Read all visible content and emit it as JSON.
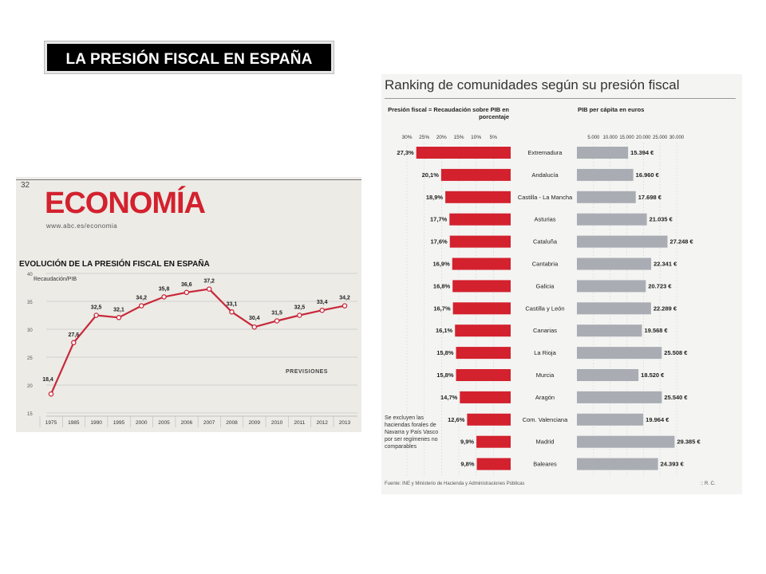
{
  "slide_title": "LA PRESIÓN FISCAL EN ESPAÑA",
  "left_clip": {
    "page_number": "32",
    "section": "ECONOMÍA",
    "url": "www.abc.es/economia",
    "chart_title": "EVOLUCIÓN DE LA PRESIÓN FISCAL EN ESPAÑA",
    "unit_label": "Recaudación/PIB",
    "forecast_label": "PREVISIONES"
  },
  "right_clip": {
    "title": "Ranking de comunidades según su presión fiscal",
    "left_header": "Presión fiscal = Recaudación sobre PIB en porcentaje",
    "right_header": "PIB per cápita en euros",
    "note": "Se excluyen las haciendas forales de Navarra y País Vasco por ser regímenes no comparables",
    "source": "Fuente: INE y Ministerio de Hacienda y Administraciones Públicas",
    "credit": ":: R. C."
  },
  "colors": {
    "accent_red": "#d3212e",
    "bar_gray": "#a9adb3",
    "line_red": "#c8283a"
  },
  "chart_data": [
    {
      "type": "line",
      "title": "EVOLUCIÓN DE LA PRESIÓN FISCAL EN ESPAÑA",
      "ylabel": "Recaudación/PIB",
      "categories": [
        "1975",
        "1985",
        "1990",
        "1995",
        "2000",
        "2005",
        "2006",
        "2007",
        "2008",
        "2009",
        "2010",
        "2011",
        "2012",
        "2013"
      ],
      "values": [
        18.4,
        27.6,
        32.5,
        32.1,
        34.2,
        35.8,
        36.6,
        37.2,
        33.1,
        30.4,
        31.5,
        32.5,
        33.4,
        34.2
      ],
      "value_labels": [
        "18,4",
        "27,6",
        "32,5",
        "32,1",
        "34,2",
        "35,8",
        "36,6",
        "37,2",
        "33,1",
        "30,4",
        "31,5",
        "32,5",
        "33,4",
        "34,2"
      ],
      "yticks": [
        15,
        20,
        25,
        30,
        35,
        40
      ],
      "ylim": [
        15,
        40
      ],
      "grid": true
    },
    {
      "type": "bar",
      "title": "Presión fiscal = Recaudación sobre PIB en porcentaje",
      "orientation": "horizontal-leftward",
      "categories": [
        "Extremadura",
        "Andalucía",
        "Castilla - La Mancha",
        "Asturias",
        "Cataluña",
        "Cantabria",
        "Galicia",
        "Castilla y León",
        "Canarias",
        "La Rioja",
        "Murcia",
        "Aragón",
        "Com. Valenciana",
        "Madrid",
        "Baleares"
      ],
      "values": [
        27.3,
        20.1,
        18.9,
        17.7,
        17.6,
        16.9,
        16.8,
        16.7,
        16.1,
        15.8,
        15.8,
        14.7,
        12.6,
        9.9,
        9.8
      ],
      "value_labels": [
        "27,3%",
        "20,1%",
        "18,9%",
        "17,7%",
        "17,6%",
        "16,9%",
        "16,8%",
        "16,7%",
        "16,1%",
        "15,8%",
        "15,8%",
        "14,7%",
        "12,6%",
        "9,9%",
        "9,8%"
      ],
      "tick_labels": [
        "30%",
        "25%",
        "20%",
        "15%",
        "10%",
        "5%"
      ],
      "xlim": [
        0,
        30
      ]
    },
    {
      "type": "bar",
      "title": "PIB per cápita en euros",
      "orientation": "horizontal",
      "categories": [
        "Extremadura",
        "Andalucía",
        "Castilla - La Mancha",
        "Asturias",
        "Cataluña",
        "Cantabria",
        "Galicia",
        "Castilla y León",
        "Canarias",
        "La Rioja",
        "Murcia",
        "Aragón",
        "Com. Valenciana",
        "Madrid",
        "Baleares"
      ],
      "values": [
        15394,
        16960,
        17698,
        21035,
        27248,
        22341,
        20723,
        22289,
        19568,
        25508,
        18520,
        25540,
        19964,
        29385,
        24393
      ],
      "value_labels": [
        "15.394 €",
        "16.960 €",
        "17.698 €",
        "21.035 €",
        "27.248 €",
        "22.341 €",
        "20.723 €",
        "22.289 €",
        "19.568 €",
        "25.508 €",
        "18.520 €",
        "25.540 €",
        "19.964 €",
        "29.385 €",
        "24.393 €"
      ],
      "tick_labels": [
        "5.000",
        "10.000",
        "15.000",
        "20.000",
        "25.000",
        "30.000"
      ],
      "xlim": [
        0,
        30000
      ]
    }
  ]
}
